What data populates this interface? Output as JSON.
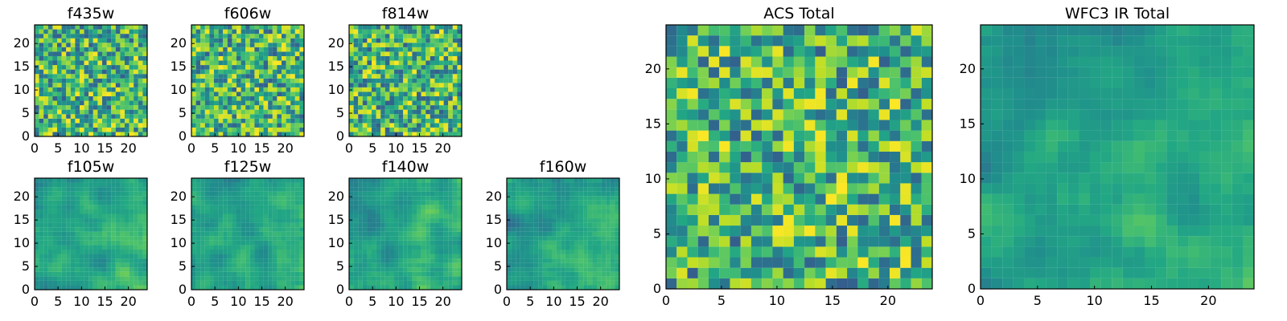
{
  "chart_data": [
    {
      "type": "heatmap",
      "title": "f435w",
      "xlabel": "",
      "ylabel": "",
      "xlim": [
        0,
        24
      ],
      "ylim": [
        0,
        24
      ],
      "xticks": [
        0,
        5,
        10,
        15,
        20
      ],
      "yticks": [
        0,
        5,
        10,
        15,
        20
      ],
      "grid_size": [
        25,
        25
      ],
      "colormap": "viridis",
      "pattern": "uniform-noise"
    },
    {
      "type": "heatmap",
      "title": "f606w",
      "xlabel": "",
      "ylabel": "",
      "xlim": [
        0,
        24
      ],
      "ylim": [
        0,
        24
      ],
      "xticks": [
        0,
        5,
        10,
        15,
        20
      ],
      "yticks": [
        0,
        5,
        10,
        15,
        20
      ],
      "grid_size": [
        25,
        25
      ],
      "colormap": "viridis",
      "pattern": "uniform-noise"
    },
    {
      "type": "heatmap",
      "title": "f814w",
      "xlabel": "",
      "ylabel": "",
      "xlim": [
        0,
        24
      ],
      "ylim": [
        0,
        24
      ],
      "xticks": [
        0,
        5,
        10,
        15,
        20
      ],
      "yticks": [
        0,
        5,
        10,
        15,
        20
      ],
      "grid_size": [
        25,
        25
      ],
      "colormap": "viridis",
      "pattern": "uniform-noise"
    },
    {
      "type": "heatmap",
      "title": "f105w",
      "xlabel": "",
      "ylabel": "",
      "xlim": [
        0,
        24
      ],
      "ylim": [
        0,
        24
      ],
      "xticks": [
        0,
        5,
        10,
        15,
        20
      ],
      "yticks": [
        0,
        5,
        10,
        15,
        20
      ],
      "grid_size": [
        25,
        25
      ],
      "colormap": "viridis",
      "pattern": "smooth-noise"
    },
    {
      "type": "heatmap",
      "title": "f125w",
      "xlabel": "",
      "ylabel": "",
      "xlim": [
        0,
        24
      ],
      "ylim": [
        0,
        24
      ],
      "xticks": [
        0,
        5,
        10,
        15,
        20
      ],
      "yticks": [
        0,
        5,
        10,
        15,
        20
      ],
      "grid_size": [
        25,
        25
      ],
      "colormap": "viridis",
      "pattern": "smooth-noise"
    },
    {
      "type": "heatmap",
      "title": "f140w",
      "xlabel": "",
      "ylabel": "",
      "xlim": [
        0,
        24
      ],
      "ylim": [
        0,
        24
      ],
      "xticks": [
        0,
        5,
        10,
        15,
        20
      ],
      "yticks": [
        0,
        5,
        10,
        15,
        20
      ],
      "grid_size": [
        25,
        25
      ],
      "colormap": "viridis",
      "pattern": "smooth-noise"
    },
    {
      "type": "heatmap",
      "title": "f160w",
      "xlabel": "",
      "ylabel": "",
      "xlim": [
        0,
        24
      ],
      "ylim": [
        0,
        24
      ],
      "xticks": [
        0,
        5,
        10,
        15,
        20
      ],
      "yticks": [
        0,
        5,
        10,
        15,
        20
      ],
      "grid_size": [
        25,
        25
      ],
      "colormap": "viridis",
      "pattern": "smooth-noise"
    },
    {
      "type": "heatmap",
      "title": "ACS Total",
      "xlabel": "",
      "ylabel": "",
      "xlim": [
        0,
        24
      ],
      "ylim": [
        0,
        24
      ],
      "xticks": [
        0,
        5,
        10,
        15,
        20
      ],
      "yticks": [
        0,
        5,
        10,
        15,
        20
      ],
      "grid_size": [
        25,
        25
      ],
      "colormap": "viridis",
      "pattern": "uniform-noise"
    },
    {
      "type": "heatmap",
      "title": "WFC3 IR Total",
      "xlabel": "",
      "ylabel": "",
      "xlim": [
        0,
        24
      ],
      "ylim": [
        0,
        24
      ],
      "xticks": [
        0,
        5,
        10,
        15,
        20
      ],
      "yticks": [
        0,
        5,
        10,
        15,
        20
      ],
      "grid_size": [
        25,
        25
      ],
      "colormap": "viridis",
      "pattern": "smooth-noise"
    }
  ]
}
